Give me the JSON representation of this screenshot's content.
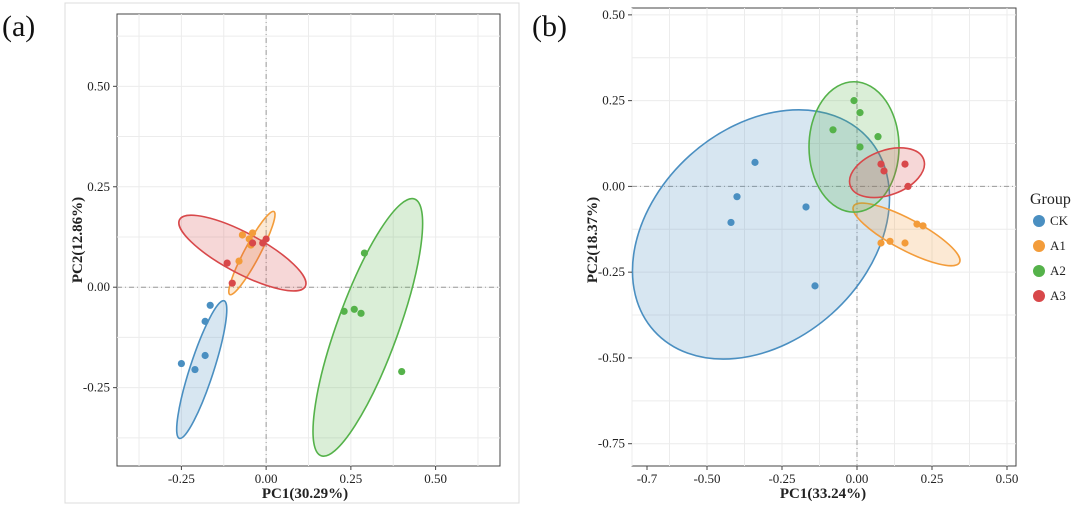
{
  "figure": {
    "panel_labels": [
      "(a)",
      "(b)"
    ]
  },
  "legend": {
    "title": "Group",
    "entries": [
      {
        "name": "CK",
        "color": "#4a8fc1"
      },
      {
        "name": "A1",
        "color": "#f39c3a"
      },
      {
        "name": "A2",
        "color": "#55b24a"
      },
      {
        "name": "A3",
        "color": "#d8484a"
      }
    ]
  },
  "chart_data": [
    {
      "type": "scatter",
      "panel": "(a)",
      "title": "",
      "xlabel": "PC1(30.29%)",
      "ylabel": "PC2(12.86%)",
      "xlim": [
        -0.44,
        0.69
      ],
      "ylim": [
        -0.445,
        0.68
      ],
      "xticks": [
        -0.25,
        0.0,
        0.25,
        0.5
      ],
      "xtick_labels": [
        "-0.25",
        "0.00",
        "0.25",
        "0.50"
      ],
      "yticks": [
        -0.25,
        0.0,
        0.25,
        0.5
      ],
      "ytick_labels": [
        "-0.25",
        "0.00",
        "0.25",
        "0.50"
      ],
      "grid": true,
      "zero_lines": true,
      "series": [
        {
          "name": "CK",
          "color": "#4a8fc1",
          "points": [
            [
              -0.25,
              -0.19
            ],
            [
              -0.21,
              -0.205
            ],
            [
              -0.18,
              -0.17
            ],
            [
              -0.18,
              -0.085
            ],
            [
              -0.165,
              -0.045
            ]
          ],
          "ellipse": {
            "center": [
              -0.19,
              -0.205
            ],
            "semi_axes": [
              0.035,
              0.18
            ],
            "angle_deg": 18
          }
        },
        {
          "name": "A1",
          "color": "#f39c3a",
          "points": [
            [
              -0.08,
              0.065
            ],
            [
              -0.07,
              0.13
            ],
            [
              -0.05,
              0.12
            ],
            [
              -0.045,
              0.105
            ],
            [
              -0.04,
              0.135
            ]
          ],
          "ellipse": {
            "center": [
              -0.042,
              0.085
            ],
            "semi_axes": [
              0.023,
              0.117
            ],
            "angle_deg": 28
          }
        },
        {
          "name": "A2",
          "color": "#55b24a",
          "points": [
            [
              0.23,
              -0.06
            ],
            [
              0.26,
              -0.055
            ],
            [
              0.28,
              -0.065
            ],
            [
              0.29,
              0.085
            ],
            [
              0.4,
              -0.21
            ]
          ],
          "ellipse": {
            "center": [
              0.3,
              -0.1
            ],
            "semi_axes": [
              0.09,
              0.34
            ],
            "angle_deg": 20
          }
        },
        {
          "name": "A3",
          "color": "#d8484a",
          "points": [
            [
              -0.115,
              0.06
            ],
            [
              -0.1,
              0.01
            ],
            [
              -0.04,
              0.11
            ],
            [
              -0.01,
              0.11
            ],
            [
              0.0,
              0.12
            ]
          ],
          "ellipse": {
            "center": [
              -0.07,
              0.085
            ],
            "semi_axes": [
              0.21,
              0.05
            ],
            "angle_deg": 28
          }
        }
      ]
    },
    {
      "type": "scatter",
      "panel": "(b)",
      "title": "",
      "xlabel": "PC1(33.24%)",
      "ylabel": "PC2(18.37%)",
      "xlim": [
        -0.75,
        0.53
      ],
      "ylim": [
        -0.815,
        0.52
      ],
      "xticks": [
        -0.7,
        -0.5,
        -0.25,
        0.0,
        0.25,
        0.5
      ],
      "xtick_labels": [
        "-0.7",
        "-0.50",
        "-0.25",
        "0.00",
        "0.25",
        "0.50"
      ],
      "yticks": [
        -0.75,
        -0.5,
        -0.25,
        0.0,
        0.25,
        0.5
      ],
      "ytick_labels": [
        "-0.75",
        "-0.50",
        "-0.25",
        "0.00",
        "0.25",
        "0.50"
      ],
      "grid": true,
      "zero_lines": true,
      "series": [
        {
          "name": "CK",
          "color": "#4a8fc1",
          "points": [
            [
              -0.42,
              -0.105
            ],
            [
              -0.4,
              -0.03
            ],
            [
              -0.34,
              0.07
            ],
            [
              -0.17,
              -0.06
            ],
            [
              -0.14,
              -0.29
            ]
          ],
          "ellipse": {
            "center": [
              -0.32,
              -0.14
            ],
            "semi_axes": [
              0.48,
              0.31
            ],
            "angle_deg": -42
          }
        },
        {
          "name": "A1",
          "color": "#f39c3a",
          "points": [
            [
              0.08,
              -0.165
            ],
            [
              0.11,
              -0.16
            ],
            [
              0.16,
              -0.165
            ],
            [
              0.2,
              -0.11
            ],
            [
              0.22,
              -0.115
            ]
          ],
          "ellipse": {
            "center": [
              0.165,
              -0.14
            ],
            "semi_axes": [
              0.2,
              0.045
            ],
            "angle_deg": 28
          }
        },
        {
          "name": "A2",
          "color": "#55b24a",
          "points": [
            [
              -0.08,
              0.165
            ],
            [
              -0.01,
              0.25
            ],
            [
              0.01,
              0.215
            ],
            [
              0.01,
              0.115
            ],
            [
              0.07,
              0.145
            ]
          ],
          "ellipse": {
            "center": [
              -0.01,
              0.115
            ],
            "semi_axes": [
              0.15,
              0.19
            ],
            "angle_deg": 0
          }
        },
        {
          "name": "A3",
          "color": "#d8484a",
          "points": [
            [
              0.08,
              0.065
            ],
            [
              0.09,
              0.045
            ],
            [
              0.16,
              0.065
            ],
            [
              0.17,
              0.0
            ]
          ],
          "ellipse": {
            "center": [
              0.1,
              0.04
            ],
            "semi_axes": [
              0.13,
              0.065
            ],
            "angle_deg": -20
          }
        }
      ]
    }
  ]
}
